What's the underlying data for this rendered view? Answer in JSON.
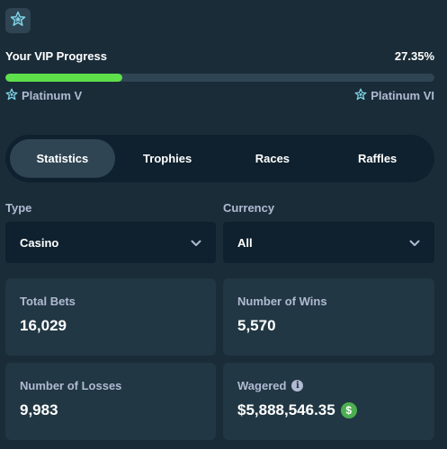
{
  "vip": {
    "title": "Your VIP Progress",
    "percent_label": "27.35%",
    "progress_fraction": 0.2735,
    "current_tier": "Platinum V",
    "next_tier": "Platinum VI",
    "fill_color": "#5ee04a",
    "star_icon": "star-badge-icon"
  },
  "tabs": [
    {
      "label": "Statistics",
      "active": true
    },
    {
      "label": "Trophies",
      "active": false
    },
    {
      "label": "Races",
      "active": false
    },
    {
      "label": "Raffles",
      "active": false
    }
  ],
  "filters": {
    "type": {
      "label": "Type",
      "value": "Casino"
    },
    "currency": {
      "label": "Currency",
      "value": "All"
    }
  },
  "stats": {
    "total_bets": {
      "label": "Total Bets",
      "value": "16,029"
    },
    "wins": {
      "label": "Number of Wins",
      "value": "5,570"
    },
    "losses": {
      "label": "Number of Losses",
      "value": "9,983"
    },
    "wagered": {
      "label": "Wagered",
      "value": "$5,888,546.35",
      "currency_icon": "dollar-coin-icon",
      "info_icon": "info-icon"
    }
  },
  "colors": {
    "background": "#1a2c38",
    "panel": "#213743",
    "input": "#0f212e",
    "muted_text": "#b1bad3",
    "accent_green": "#5ee04a"
  }
}
